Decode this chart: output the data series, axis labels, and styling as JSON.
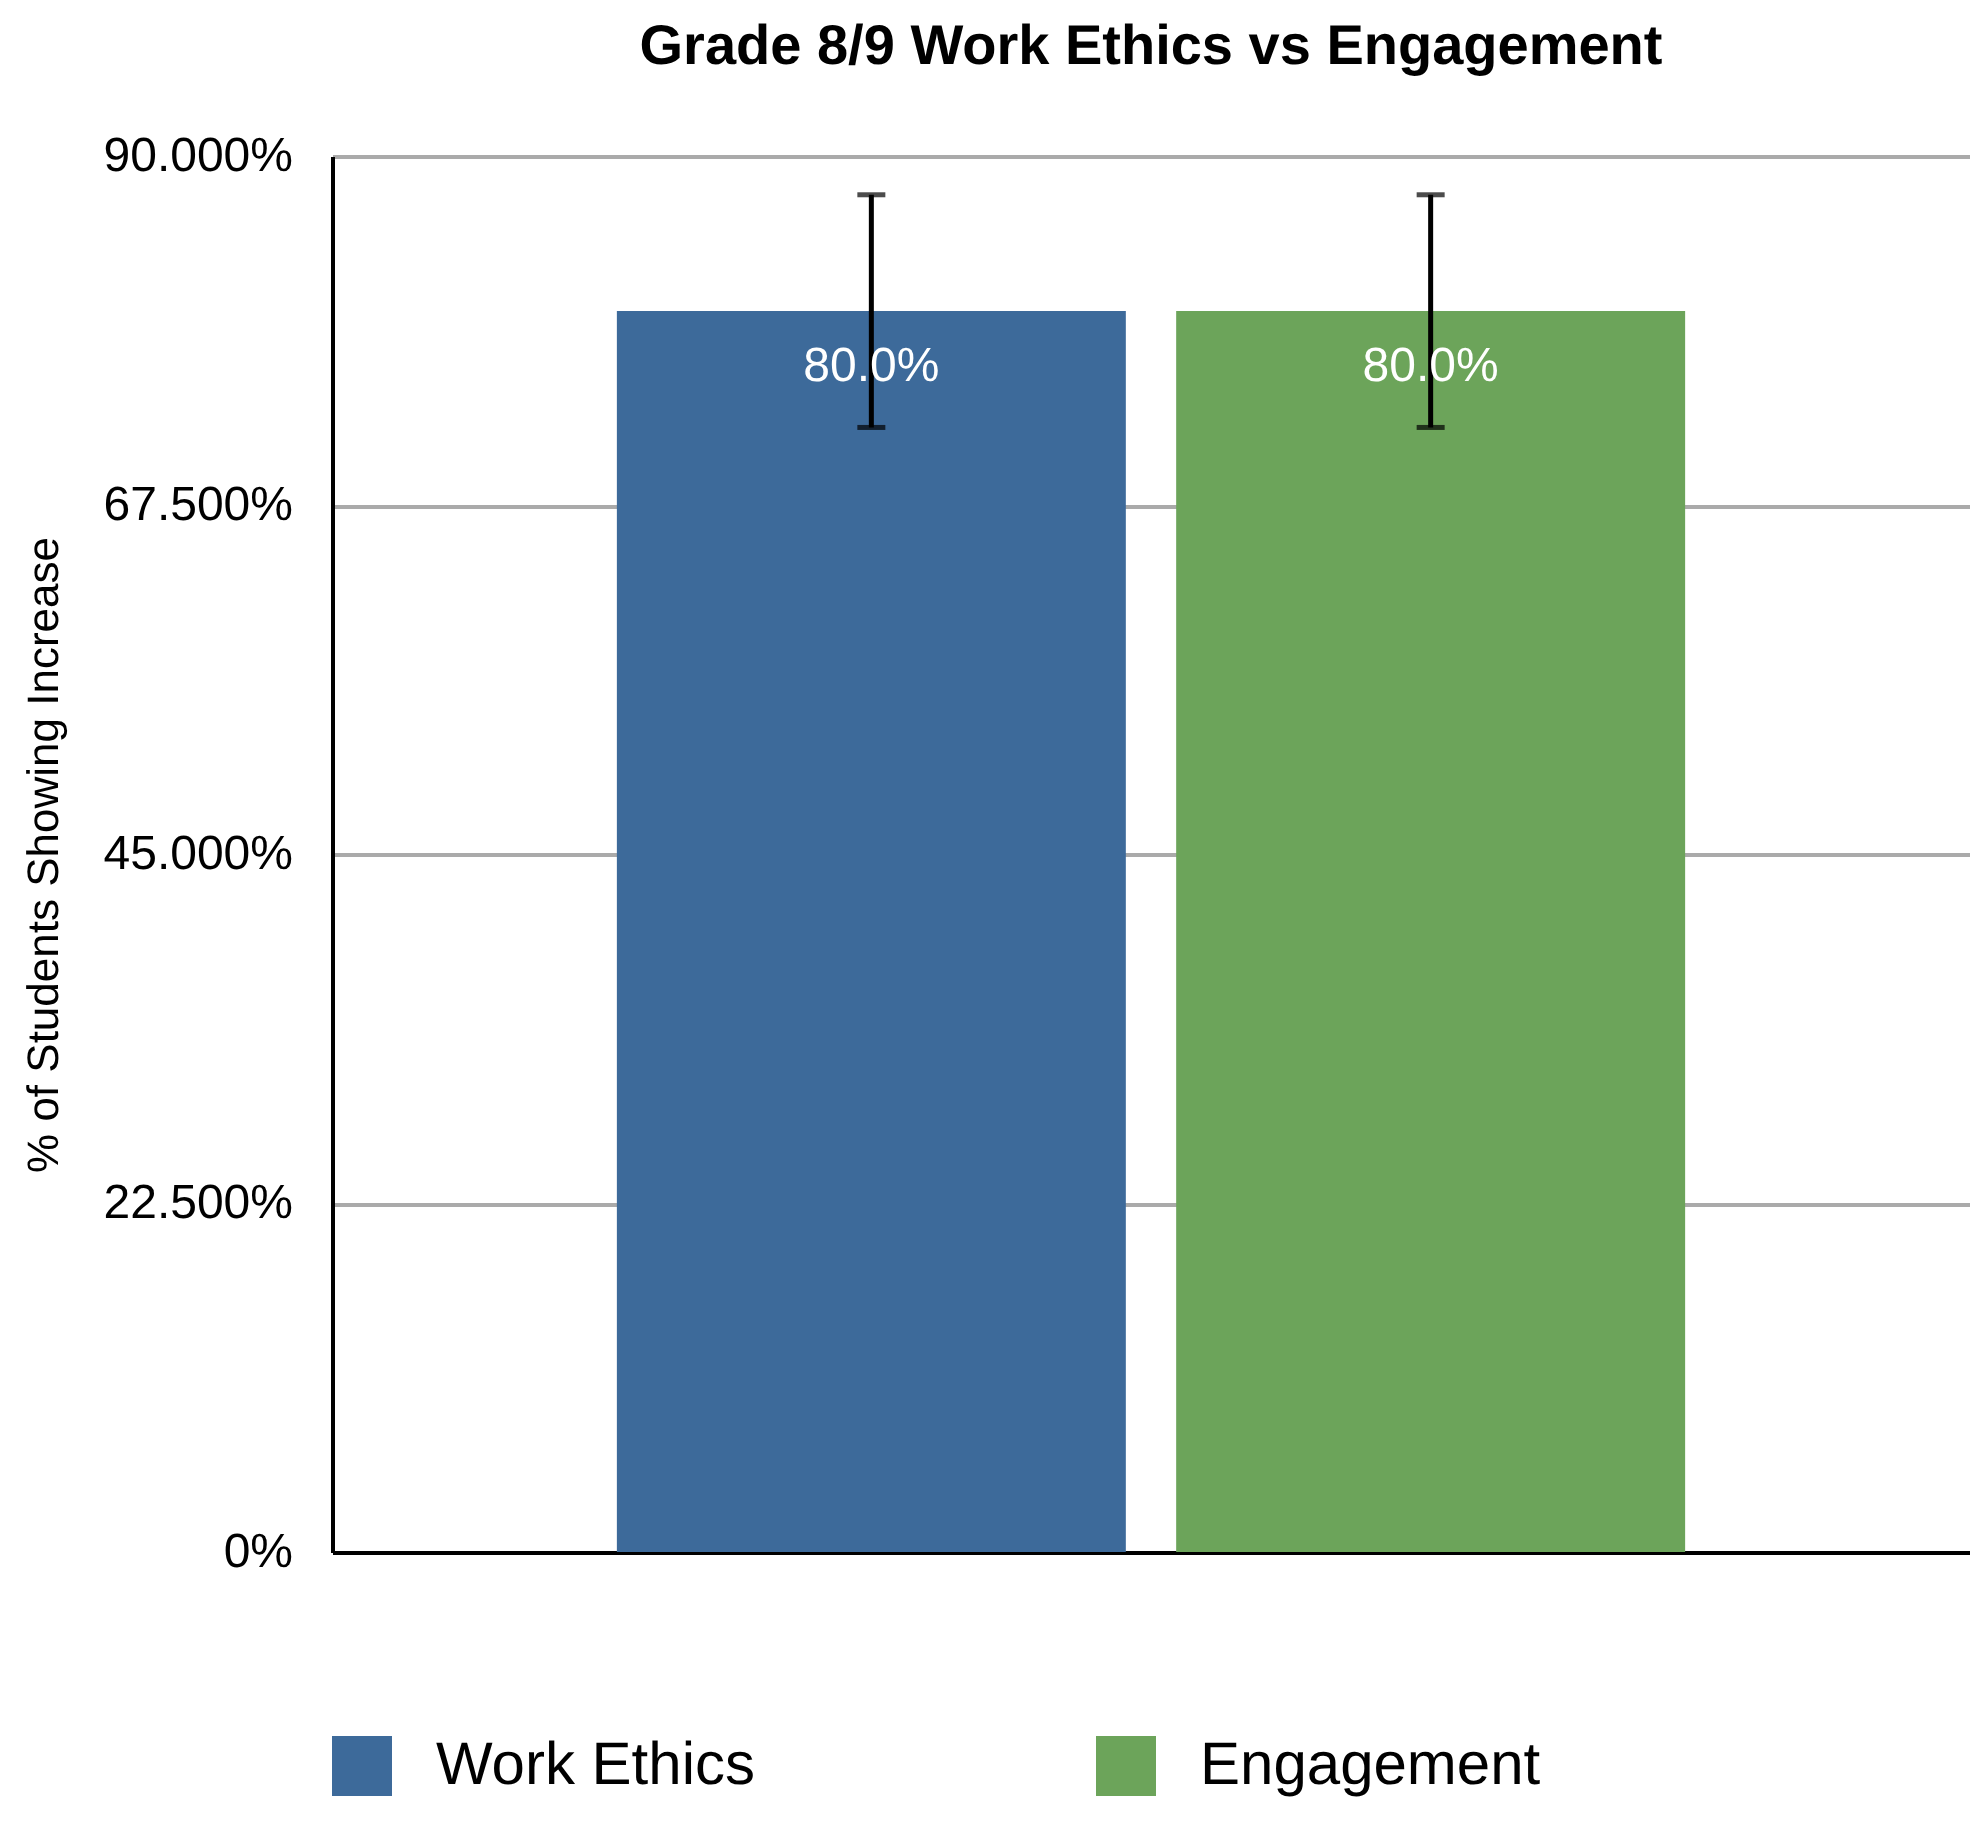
{
  "chart_data": {
    "type": "bar",
    "title": "Grade 8/9 Work Ethics vs Engagement",
    "ylabel": "% of Students Showing Increase",
    "categories": [
      null
    ],
    "series": [
      {
        "name": "Work Ethics",
        "color": "#3d6a9a",
        "values": [
          80
        ],
        "errors": [
          7.5
        ],
        "value_labels": [
          "80.0%"
        ]
      },
      {
        "name": "Engagement",
        "color": "#6ca45a",
        "values": [
          80
        ],
        "errors": [
          7.5
        ],
        "value_labels": [
          "80.0%"
        ]
      }
    ],
    "ylim": [
      0,
      90
    ],
    "yticks": [
      {
        "value": 0,
        "label": "0%"
      },
      {
        "value": 22.5,
        "label": "22.500%"
      },
      {
        "value": 45,
        "label": "45.000%"
      },
      {
        "value": 67.5,
        "label": "67.500%"
      },
      {
        "value": 90,
        "label": "90.000%"
      }
    ],
    "grid": "y",
    "legend": "bottom"
  }
}
